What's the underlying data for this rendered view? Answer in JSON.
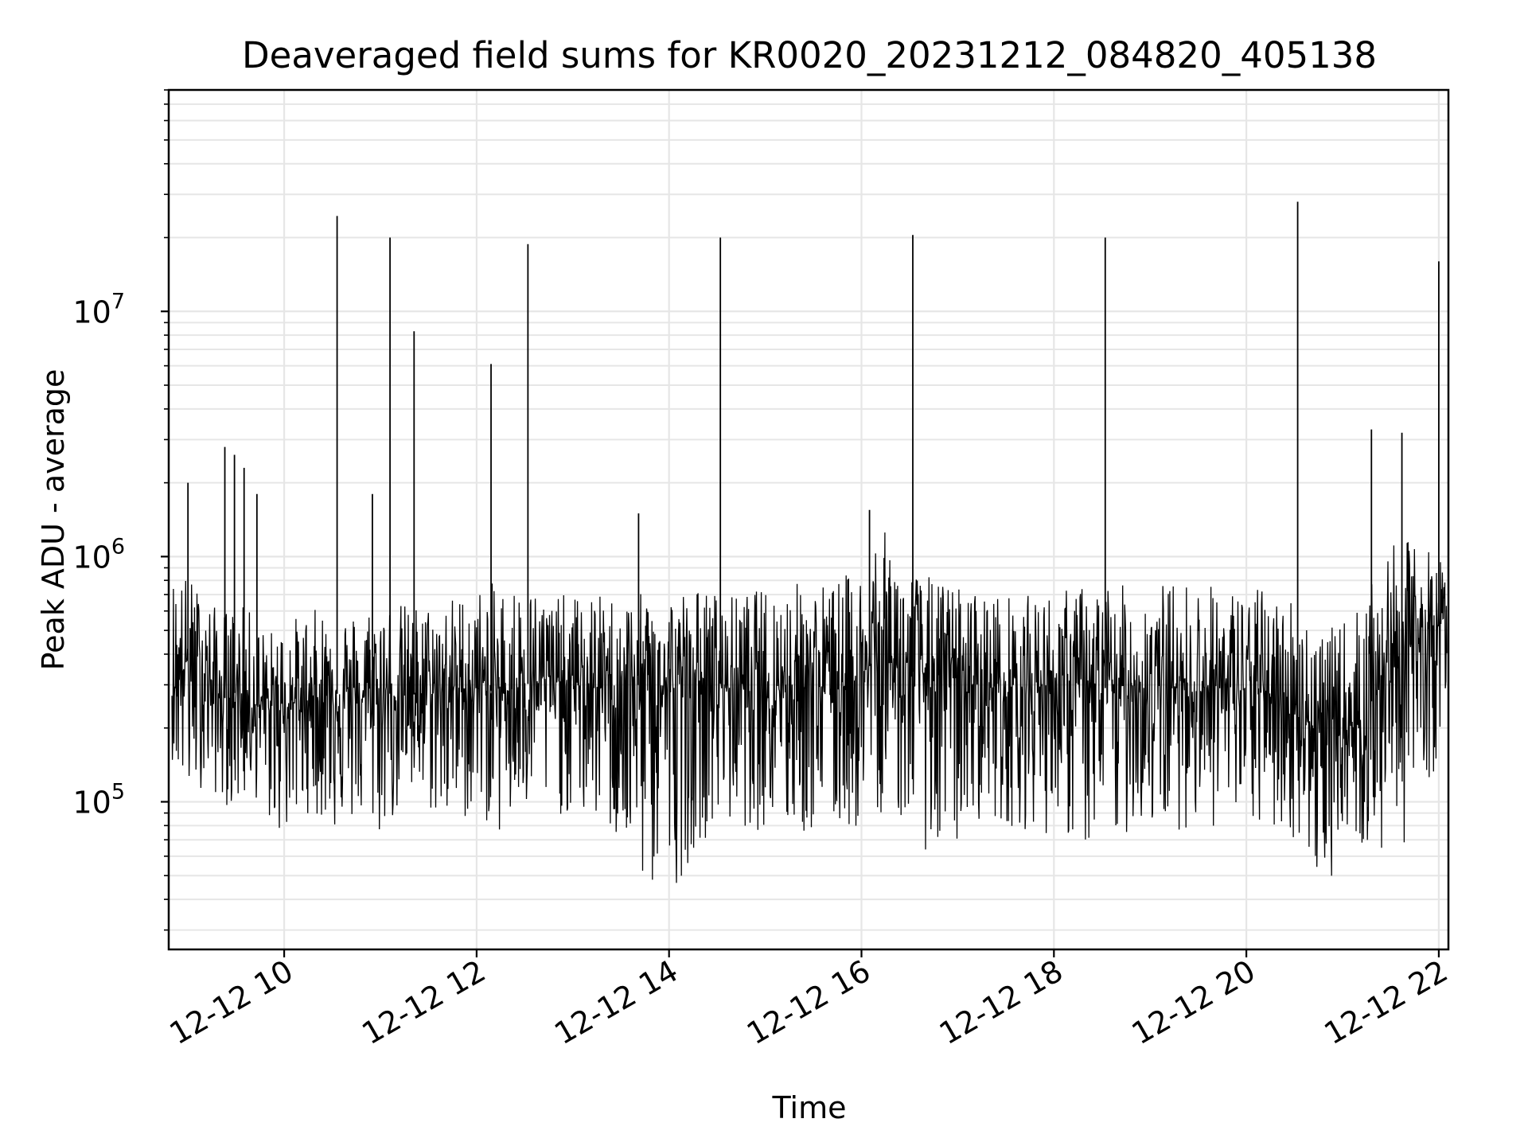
{
  "chart_data": {
    "type": "line",
    "title": "Deaveraged field sums for KR0020_20231212_084820_405138",
    "xlabel": "Time",
    "ylabel": "Peak ADU - average",
    "xscale": "time",
    "yscale": "log",
    "xlim": [
      "2023-12-12 08:48",
      "2023-12-12 22:06"
    ],
    "ylim": [
      25000,
      80000000
    ],
    "grid": true,
    "legend": "none",
    "line_color": "#000000",
    "x_ticks": [
      {
        "value": "2023-12-12 10:00",
        "label": "12-12 10"
      },
      {
        "value": "2023-12-12 12:00",
        "label": "12-12 12"
      },
      {
        "value": "2023-12-12 14:00",
        "label": "12-12 14"
      },
      {
        "value": "2023-12-12 16:00",
        "label": "12-12 16"
      },
      {
        "value": "2023-12-12 18:00",
        "label": "12-12 18"
      },
      {
        "value": "2023-12-12 20:00",
        "label": "12-12 20"
      },
      {
        "value": "2023-12-12 22:00",
        "label": "12-12 22"
      }
    ],
    "y_ticks": [
      {
        "value": 100000,
        "base": "10",
        "exp": "5"
      },
      {
        "value": 1000000,
        "base": "10",
        "exp": "6"
      },
      {
        "value": 10000000,
        "base": "10",
        "exp": "7"
      }
    ],
    "series": [
      {
        "x": [
          "2023-12-12 08:50",
          "2023-12-12 09:00",
          "2023-12-12 09:10",
          "2023-12-12 09:20",
          "2023-12-12 09:30",
          "2023-12-12 09:40",
          "2023-12-12 09:50",
          "2023-12-12 10:00",
          "2023-12-12 10:15",
          "2023-12-12 10:30",
          "2023-12-12 10:45",
          "2023-12-12 11:00",
          "2023-12-12 11:15",
          "2023-12-12 11:30",
          "2023-12-12 11:45",
          "2023-12-12 12:00",
          "2023-12-12 12:15",
          "2023-12-12 12:30",
          "2023-12-12 12:45",
          "2023-12-12 13:00",
          "2023-12-12 13:20",
          "2023-12-12 13:40",
          "2023-12-12 14:00",
          "2023-12-12 14:20",
          "2023-12-12 14:40",
          "2023-12-12 15:00",
          "2023-12-12 15:20",
          "2023-12-12 15:40",
          "2023-12-12 16:00",
          "2023-12-12 16:10",
          "2023-12-12 16:30",
          "2023-12-12 16:50",
          "2023-12-12 17:10",
          "2023-12-12 17:30",
          "2023-12-12 17:50",
          "2023-12-12 18:10",
          "2023-12-12 18:30",
          "2023-12-12 18:50",
          "2023-12-12 19:10",
          "2023-12-12 19:30",
          "2023-12-12 19:50",
          "2023-12-12 20:10",
          "2023-12-12 20:30",
          "2023-12-12 20:50",
          "2023-12-12 21:00",
          "2023-12-12 21:15",
          "2023-12-12 21:30",
          "2023-12-12 21:45",
          "2023-12-12 22:00",
          "2023-12-12 22:05"
        ],
        "values": [
          300000,
          380000,
          350000,
          260000,
          280000,
          250000,
          240000,
          250000,
          260000,
          280000,
          260000,
          280000,
          270000,
          280000,
          290000,
          290000,
          280000,
          300000,
          320000,
          300000,
          290000,
          300000,
          290000,
          310000,
          300000,
          310000,
          310000,
          300000,
          320000,
          400000,
          340000,
          330000,
          300000,
          290000,
          300000,
          300000,
          290000,
          300000,
          290000,
          300000,
          290000,
          280000,
          260000,
          170000,
          190000,
          230000,
          400000,
          450000,
          520000,
          600000
        ],
        "low": [
          150000,
          90000,
          120000,
          100000,
          90000,
          110000,
          80000,
          70000,
          90000,
          75000,
          80000,
          70000,
          95000,
          90000,
          75000,
          90000,
          70000,
          85000,
          90000,
          85000,
          80000,
          45000,
          40000,
          70000,
          80000,
          75000,
          70000,
          75000,
          75000,
          90000,
          80000,
          50000,
          85000,
          80000,
          75000,
          70000,
          55000,
          80000,
          75000,
          80000,
          75000,
          75000,
          70000,
          40000,
          80000,
          60000,
          55000,
          80000,
          150000,
          300000
        ],
        "high": [
          900000,
          850000,
          700000,
          600000,
          650000,
          600000,
          500000,
          550000,
          600000,
          650000,
          600000,
          700000,
          650000,
          650000,
          700000,
          750000,
          800000,
          800000,
          700000,
          700000,
          700000,
          700000,
          750000,
          750000,
          700000,
          750000,
          800000,
          800000,
          900000,
          1400000,
          900000,
          800000,
          750000,
          700000,
          700000,
          750000,
          800000,
          750000,
          800000,
          800000,
          750000,
          750000,
          700000,
          500000,
          550000,
          700000,
          1100000,
          1200000,
          1000000,
          1000000
        ]
      }
    ],
    "spikes": [
      {
        "x": "2023-12-12 09:00",
        "y": 2000000
      },
      {
        "x": "2023-12-12 09:23",
        "y": 2800000
      },
      {
        "x": "2023-12-12 09:29",
        "y": 2600000
      },
      {
        "x": "2023-12-12 09:35",
        "y": 2300000
      },
      {
        "x": "2023-12-12 09:43",
        "y": 1800000
      },
      {
        "x": "2023-12-12 10:33",
        "y": 24500000
      },
      {
        "x": "2023-12-12 10:55",
        "y": 1800000
      },
      {
        "x": "2023-12-12 11:06",
        "y": 20000000
      },
      {
        "x": "2023-12-12 11:21",
        "y": 8300000
      },
      {
        "x": "2023-12-12 12:09",
        "y": 6100000
      },
      {
        "x": "2023-12-12 12:32",
        "y": 18800000
      },
      {
        "x": "2023-12-12 13:41",
        "y": 1500000
      },
      {
        "x": "2023-12-12 14:32",
        "y": 20000000
      },
      {
        "x": "2023-12-12 16:05",
        "y": 1550000
      },
      {
        "x": "2023-12-12 16:32",
        "y": 20500000
      },
      {
        "x": "2023-12-12 18:32",
        "y": 20000000
      },
      {
        "x": "2023-12-12 20:32",
        "y": 28000000
      },
      {
        "x": "2023-12-12 21:18",
        "y": 3300000
      },
      {
        "x": "2023-12-12 21:37",
        "y": 3200000
      },
      {
        "x": "2023-12-12 22:00",
        "y": 16000000
      }
    ]
  }
}
